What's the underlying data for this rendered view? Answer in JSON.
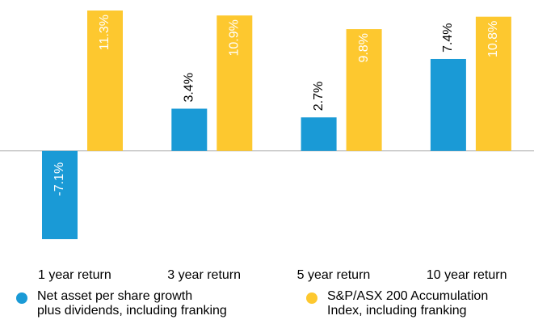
{
  "chart_data": {
    "type": "bar",
    "categories": [
      "1 year return",
      "3 year return",
      "5 year return",
      "10 year return"
    ],
    "series": [
      {
        "name": "Net asset per share growth\nplus dividends, including franking",
        "color": "#1a9ad6",
        "values": [
          -7.1,
          3.4,
          2.7,
          7.4
        ],
        "value_labels": [
          "-7.1%",
          "3.4%",
          "2.7%",
          "7.4%"
        ]
      },
      {
        "name": "S&P/ASX 200 Accumulation\nIndex, including franking",
        "color": "#fdc82f",
        "values": [
          11.3,
          10.9,
          9.8,
          10.8
        ],
        "value_labels": [
          "11.3%",
          "10.9%",
          "9.8%",
          "10.8%"
        ]
      }
    ]
  }
}
